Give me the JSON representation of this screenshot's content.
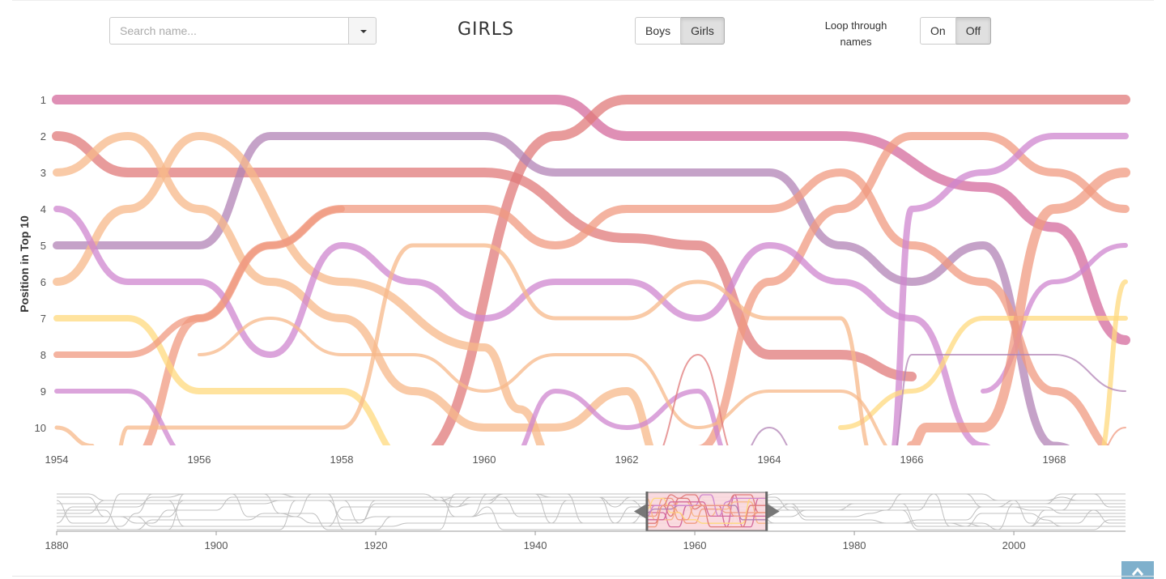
{
  "search": {
    "placeholder": "Search name..."
  },
  "title": "GIRLS",
  "gender_toggle": {
    "options": [
      "Boys",
      "Girls"
    ],
    "selected": "Girls"
  },
  "loop_toggle": {
    "label": "Loop through names",
    "options": [
      "On",
      "Off"
    ],
    "selected": "Off"
  },
  "colors": {
    "palette": [
      "#d4699c",
      "#e07a7a",
      "#f09a80",
      "#f7b889",
      "#ffd97d",
      "#b183b5",
      "#cf86cf"
    ],
    "context_lines": "#c0c0c0",
    "brush": "#f9d7dd"
  },
  "chart_data": {
    "type": "line",
    "ylabel": "Position in Top 10",
    "x_ticks": [
      "1954",
      "1956",
      "1958",
      "1960",
      "1962",
      "1964",
      "1966",
      "1968"
    ],
    "y_ticks": [
      "1",
      "2",
      "3",
      "4",
      "5",
      "6",
      "7",
      "8",
      "9",
      "10"
    ],
    "xlim": [
      1954,
      1969
    ],
    "ylim": [
      1,
      10
    ],
    "series": [
      {
        "color": "#d4699c",
        "width": 12,
        "points": [
          [
            1954,
            1
          ],
          [
            1961,
            1
          ],
          [
            1962,
            2
          ],
          [
            1965,
            2
          ],
          [
            1967,
            3.4
          ],
          [
            1968,
            4.5
          ],
          [
            1969,
            7.6
          ]
        ]
      },
      {
        "color": "#e07a7a",
        "width": 12,
        "points": [
          [
            1954,
            2
          ],
          [
            1955,
            3
          ],
          [
            1960,
            3
          ],
          [
            1962,
            4.8
          ],
          [
            1963,
            5
          ],
          [
            1964,
            8
          ],
          [
            1965,
            8
          ],
          [
            1966,
            8.6
          ]
        ]
      },
      {
        "color": "#e07a7a",
        "width": 12,
        "points": [
          [
            1959,
            10.9
          ],
          [
            1961,
            2
          ],
          [
            1962,
            1
          ],
          [
            1969,
            1
          ]
        ]
      },
      {
        "color": "#b183b5",
        "width": 10,
        "points": [
          [
            1954,
            5
          ],
          [
            1956,
            5
          ],
          [
            1957,
            2
          ],
          [
            1960,
            2
          ],
          [
            1961,
            3
          ],
          [
            1964,
            3
          ],
          [
            1965,
            5
          ],
          [
            1966,
            6
          ],
          [
            1967,
            5
          ],
          [
            1968,
            10.5
          ],
          [
            1968.5,
            10.8
          ]
        ]
      },
      {
        "color": "#f7b889",
        "width": 10,
        "points": [
          [
            1954,
            6
          ],
          [
            1955,
            4
          ],
          [
            1956,
            2
          ],
          [
            1958,
            6
          ],
          [
            1960,
            7.8
          ],
          [
            1960.5,
            9.5
          ],
          [
            1961,
            11
          ]
        ]
      },
      {
        "color": "#f7b889",
        "width": 10,
        "points": [
          [
            1954,
            3
          ],
          [
            1955,
            2
          ],
          [
            1956,
            4
          ],
          [
            1957,
            6
          ],
          [
            1958,
            7
          ],
          [
            1959,
            9
          ],
          [
            1960,
            10
          ],
          [
            1961,
            10
          ],
          [
            1962,
            9
          ],
          [
            1962.5,
            11
          ]
        ]
      },
      {
        "color": "#f09a80",
        "width": 10,
        "points": [
          [
            1955,
            11
          ],
          [
            1956,
            7
          ],
          [
            1957,
            5
          ],
          [
            1958,
            4
          ],
          [
            1960,
            4
          ],
          [
            1961,
            5
          ],
          [
            1962,
            4
          ],
          [
            1964,
            4
          ],
          [
            1965,
            3
          ],
          [
            1966,
            5
          ],
          [
            1967,
            6
          ],
          [
            1968,
            9
          ],
          [
            1969,
            10.8
          ]
        ]
      },
      {
        "color": "#f09a80",
        "width": 10,
        "points": [
          [
            1963,
            10.6
          ],
          [
            1964,
            6
          ],
          [
            1965,
            4
          ],
          [
            1966,
            2
          ],
          [
            1967,
            2
          ],
          [
            1968,
            3
          ],
          [
            1969,
            4
          ]
        ]
      },
      {
        "color": "#cf86cf",
        "width": 8,
        "points": [
          [
            1954,
            4
          ],
          [
            1955,
            6
          ],
          [
            1956,
            6
          ],
          [
            1957,
            8
          ],
          [
            1958,
            5
          ],
          [
            1959,
            6
          ],
          [
            1960,
            7
          ],
          [
            1961,
            6
          ],
          [
            1962,
            6
          ],
          [
            1963,
            7
          ],
          [
            1964,
            5
          ],
          [
            1965,
            6
          ],
          [
            1966,
            7
          ],
          [
            1967,
            10.5
          ],
          [
            1967.3,
            11
          ]
        ]
      },
      {
        "color": "#cf86cf",
        "width": 8,
        "points": [
          [
            1965.7,
            11
          ],
          [
            1966,
            4
          ],
          [
            1967,
            3
          ],
          [
            1968,
            2
          ],
          [
            1969,
            2
          ]
        ]
      },
      {
        "color": "#cf86cf",
        "width": 6,
        "points": [
          [
            1954,
            9
          ],
          [
            1955,
            9
          ],
          [
            1956,
            11
          ]
        ]
      },
      {
        "color": "#cf86cf",
        "width": 6,
        "points": [
          [
            1960.3,
            11
          ],
          [
            1961,
            9
          ],
          [
            1962,
            10
          ],
          [
            1963,
            9
          ],
          [
            1963.5,
            11
          ]
        ]
      },
      {
        "color": "#cf86cf",
        "width": 6,
        "points": [
          [
            1967,
            9
          ],
          [
            1968,
            6
          ],
          [
            1969,
            5
          ]
        ]
      },
      {
        "color": "#ffd97d",
        "width": 8,
        "points": [
          [
            1954,
            7
          ],
          [
            1955,
            7
          ],
          [
            1956,
            9
          ],
          [
            1958,
            9
          ],
          [
            1959,
            11
          ]
        ]
      },
      {
        "color": "#ffd97d",
        "width": 6,
        "points": [
          [
            1965,
            10
          ],
          [
            1966,
            9
          ],
          [
            1967,
            7
          ],
          [
            1969,
            7
          ]
        ]
      },
      {
        "color": "#ffd97d",
        "width": 6,
        "points": [
          [
            1968.6,
            11
          ],
          [
            1969,
            6
          ]
        ]
      },
      {
        "color": "#f7b889",
        "width": 5,
        "points": [
          [
            1954,
            10
          ],
          [
            1954.5,
            10.5
          ]
        ]
      },
      {
        "color": "#f7b889",
        "width": 5,
        "points": [
          [
            1954.8,
            11
          ],
          [
            1955,
            10
          ],
          [
            1958,
            10
          ],
          [
            1959,
            5
          ],
          [
            1960,
            5
          ],
          [
            1961,
            7
          ],
          [
            1962,
            7
          ],
          [
            1963,
            6
          ],
          [
            1964,
            7
          ],
          [
            1965,
            7
          ],
          [
            1965.5,
            11
          ]
        ]
      },
      {
        "color": "#f7b889",
        "width": 4,
        "points": [
          [
            1956,
            8
          ],
          [
            1957,
            7
          ],
          [
            1958,
            8
          ],
          [
            1959,
            8
          ],
          [
            1960,
            9
          ],
          [
            1961,
            8
          ],
          [
            1962,
            8
          ],
          [
            1963,
            10
          ],
          [
            1964,
            9
          ],
          [
            1965,
            9
          ],
          [
            1966,
            11
          ]
        ]
      },
      {
        "color": "#f09a80",
        "width": 8,
        "points": [
          [
            1954,
            8
          ],
          [
            1955,
            8
          ],
          [
            1956,
            7
          ],
          [
            1957,
            5
          ],
          [
            1958,
            4
          ]
        ]
      },
      {
        "color": "#f09a80",
        "width": 12,
        "points": [
          [
            1966,
            10.5
          ],
          [
            1966.2,
            10
          ],
          [
            1967,
            10
          ],
          [
            1968,
            4
          ],
          [
            1969,
            3
          ]
        ]
      },
      {
        "color": "#e07a7a",
        "width": 2,
        "points": [
          [
            1962.3,
            11
          ],
          [
            1963,
            8
          ],
          [
            1963.6,
            11
          ]
        ]
      },
      {
        "color": "#b183b5",
        "width": 2,
        "points": [
          [
            1963.5,
            11
          ],
          [
            1964,
            10
          ],
          [
            1964.5,
            11
          ]
        ]
      },
      {
        "color": "#b183b5",
        "width": 2,
        "points": [
          [
            1965.7,
            11
          ],
          [
            1966,
            8
          ],
          [
            1968,
            8
          ],
          [
            1969,
            9
          ]
        ]
      },
      {
        "color": "#f09a80",
        "width": 2,
        "points": [
          [
            1968.5,
            11
          ],
          [
            1969,
            10
          ]
        ]
      }
    ],
    "overview": {
      "xlim": [
        1880,
        2014
      ],
      "x_ticks": [
        "1880",
        "1900",
        "1920",
        "1940",
        "1960",
        "1980",
        "2000"
      ],
      "brush": [
        1954,
        1969
      ]
    }
  }
}
